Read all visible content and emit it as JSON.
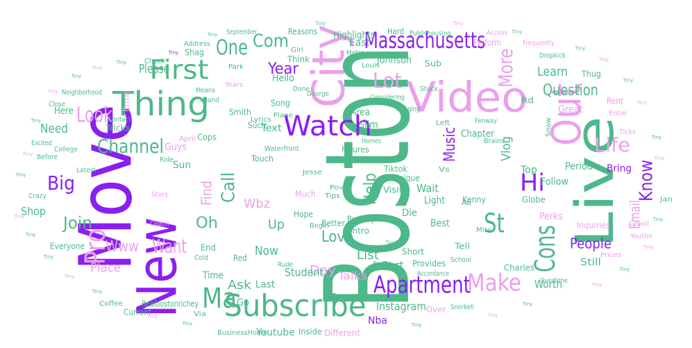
{
  "colors": {
    "green": "#4db88a",
    "purple": "#8a1ff0",
    "pink": "#eaa0ec",
    "background": "#ffffff"
  },
  "words": {
    "boston": "Boston",
    "move": "Move",
    "new": "New",
    "live": "Live",
    "video": "Video",
    "city": "City",
    "out": "Out",
    "thing": "Thing",
    "subscribe": "Subscribe",
    "watch": "Watch",
    "massachusetts": "Massachusetts",
    "apartment": "Apartment",
    "cons": "Cons",
    "pro": "Pro",
    "ma": "Ma",
    "first": "First",
    "one": "One",
    "com": "Com",
    "look": "Look",
    "channel": "Channel",
    "lot": "Lot",
    "more": "More",
    "life": "Life",
    "hi": "Hi",
    "make": "Make",
    "know": "Know",
    "want": "Want",
    "music": "Music",
    "st": "St",
    "question": "Question",
    "call": "Call",
    "help": "Help",
    "big": "Big",
    "join": "Join",
    "year": "Year",
    "love": "Love",
    "learn": "Learn",
    "www": "Www",
    "people": "People",
    "email": "Email",
    "find": "Find",
    "oh": "Oh",
    "day": "Day",
    "vlog": "Vlog",
    "wbz": "Wbz",
    "ask": "Ask",
    "up": "Up",
    "now": "Now",
    "list": "List",
    "part": "Part",
    "talks": "Talks",
    "student": "Student",
    "instagram": "Instagram",
    "place": "Place",
    "need": "Need",
    "shop": "Shop",
    "please": "Please",
    "highlights": "Highlights",
    "worth": "Worth",
    "perks": "Perks",
    "bring": "Bring",
    "period": "Period",
    "great": "Great",
    "wait": "Wait",
    "chapter": "Chapter",
    "top": "Top",
    "follow": "Follow",
    "still": "Still",
    "youtube": "Youtube",
    "inside": "Inside",
    "different": "Different",
    "nba": "Nba",
    "over": "Over",
    "last": "Last",
    "time": "Time",
    "go": "Go",
    "hello": "Hello",
    "johnson": "Johnson",
    "east": "East",
    "think": "Think",
    "sub": "Sub",
    "text": "Text",
    "slim": "Slim",
    "area": "Area",
    "guys": "Guys",
    "tricks": "Tricks",
    "here": "Here",
    "everyone": "Everyone",
    "light": "Light",
    "best": "Best",
    "die": "Die",
    "kenny": "Kenny",
    "globe": "Globe",
    "charles": "Charles",
    "provides": "Provides",
    "short": "Short",
    "tell": "Tell",
    "tiktok": "Tiktok",
    "buckley": "Buckley",
    "hope": "Hope",
    "better": "Better",
    "much": "Much",
    "sun": "Sun",
    "end": "End",
    "cops": "Cops",
    "song": "Song",
    "smith": "Smith",
    "such": "Such",
    "realbostonrichey": "Realbostonrichey",
    "current": "Current",
    "coffee": "Coffee",
    "business": "Business",
    "home": "Home",
    "reasons": "Reasons",
    "perform": "Perform",
    "hard": "Hard",
    "publichousing": "Publichousing",
    "shag": "Shag",
    "ernie": "Ernie",
    "check": "Check",
    "address": "Address",
    "george": "George",
    "done": "Done",
    "louis": "Louis",
    "lyrics": "Lyrics",
    "plane": "Plane",
    "figures": "Figures",
    "touch": "Touch",
    "unique": "Unique",
    "visit": "Visit",
    "inquiries": "Inquiries",
    "thug": "Thug",
    "rent": "Rent",
    "snow": "Snow",
    "gmail": "Gmail",
    "youthe": "Youthe",
    "prices": "Prices",
    "overtime": "Overtime",
    "entre": "Entre",
    "ticks": "Ticks",
    "jan": "Jan",
    "dropkick": "Dropkick",
    "access": "Access",
    "frequently": "Frequently",
    "miss": "Miss",
    "school": "School",
    "based": "Based",
    "sports": "Sports",
    "intro": "Intro",
    "begin": "Begin",
    "tips": "Tips",
    "pov": "Pov",
    "jesse": "Jesse",
    "vs": "Vs",
    "homes": "Homes",
    "college": "College",
    "before": "Before",
    "contact": "Contact",
    "april": "April",
    "ride": "Ride",
    "coach": "Coach",
    "crazy": "Crazy",
    "latest": "Latest",
    "girl": "Girl",
    "metro": "Metro",
    "park": "Park",
    "september": "September",
    "years": "Years",
    "means": "Means",
    "inland": "Inland",
    "neighborhood": "Neighborhood",
    "close": "Close",
    "excited": "Excited",
    "red": "Red",
    "rude": "Rude",
    "cold": "Cold",
    "via": "Via",
    "stuck": "Stuck",
    "hanging": "Hanging",
    "considering": "Considering",
    "waterfront": "Waterfront",
    "fenway": "Fenway",
    "brains": "Brains",
    "left": "Left",
    "rd": "Rd",
    "ad": "Ad",
    "snorkell": "Snorkell",
    "accordance": "Accordance",
    "stars": "Stars",
    "tiny": "Tiny"
  }
}
